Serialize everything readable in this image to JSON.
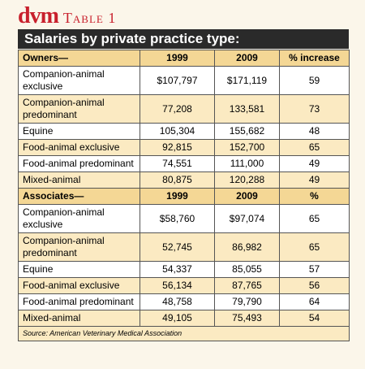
{
  "header": {
    "logo": "dvm",
    "label": "Table 1"
  },
  "title": "Salaries by private practice type:",
  "sections": [
    {
      "header": [
        "Owners—",
        "1999",
        "2009",
        "% increase"
      ],
      "rows": [
        [
          "Companion-animal exclusive",
          "$107,797",
          "$171,119",
          "59"
        ],
        [
          "Companion-animal predominant",
          "77,208",
          "133,581",
          "73"
        ],
        [
          "Equine",
          "105,304",
          "155,682",
          "48"
        ],
        [
          "Food-animal exclusive",
          "92,815",
          "152,700",
          "65"
        ],
        [
          "Food-animal predominant",
          "74,551",
          "111,000",
          "49"
        ],
        [
          "Mixed-animal",
          "80,875",
          "120,288",
          "49"
        ]
      ]
    },
    {
      "header": [
        "Associates—",
        "1999",
        "2009",
        "%"
      ],
      "rows": [
        [
          "Companion-animal exclusive",
          "$58,760",
          "$97,074",
          "65"
        ],
        [
          "Companion-animal predominant",
          "52,745",
          "86,982",
          "65"
        ],
        [
          "Equine",
          "54,337",
          "85,055",
          "57"
        ],
        [
          "Food-animal exclusive",
          "56,134",
          "87,765",
          "56"
        ],
        [
          "Food-animal predominant",
          "48,758",
          "79,790",
          "64"
        ],
        [
          "Mixed-animal",
          "49,105",
          "75,493",
          "54"
        ]
      ]
    }
  ],
  "source": "Source: American Veterinary Medical Association"
}
